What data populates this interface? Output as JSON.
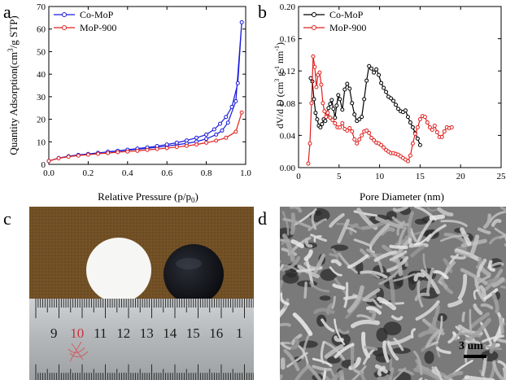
{
  "panels": {
    "a": "a",
    "b": "b",
    "c": "c",
    "d": "d"
  },
  "chart_data": [
    {
      "type": "line",
      "xlabel": "Relative Pressure (p/p",
      "xlabel_sub": "0",
      "xlabel_end": ")",
      "ylabel": "Quantity Adsorption(cm",
      "ylabel_sup": "3",
      "ylabel_end": "/g STP)",
      "xlim": [
        0.0,
        1.0
      ],
      "ylim": [
        0,
        70
      ],
      "xticks": [
        "0.0",
        "0.2",
        "0.4",
        "0.6",
        "0.8",
        "1.0"
      ],
      "yticks": [
        "0",
        "10",
        "20",
        "30",
        "40",
        "50",
        "60",
        "70"
      ],
      "xtick_values": [
        0.0,
        0.2,
        0.4,
        0.6,
        0.8,
        1.0
      ],
      "ytick_values": [
        0,
        10,
        20,
        30,
        40,
        50,
        60,
        70
      ],
      "legend_position": "top-left",
      "series": [
        {
          "name": "Co-MoP",
          "color": "#1a1adb",
          "x": [
            0.0,
            0.05,
            0.1,
            0.15,
            0.2,
            0.25,
            0.3,
            0.35,
            0.4,
            0.45,
            0.5,
            0.55,
            0.6,
            0.65,
            0.7,
            0.75,
            0.8,
            0.85,
            0.88,
            0.91,
            0.95,
            0.98,
            0.96,
            0.93,
            0.9,
            0.87,
            0.84,
            0.8,
            0.75,
            0.7,
            0.65,
            0.6,
            0.55,
            0.5,
            0.45,
            0.4,
            0.35,
            0.3
          ],
          "y": [
            1.5,
            2.8,
            3.6,
            4.2,
            4.6,
            5.1,
            5.5,
            5.9,
            6.3,
            6.7,
            7.1,
            7.6,
            8.1,
            8.7,
            9.3,
            10.1,
            11.3,
            13.2,
            15.0,
            18.5,
            28.0,
            63.0,
            36.0,
            25.5,
            21.0,
            18.0,
            15.5,
            13.2,
            11.8,
            10.6,
            9.6,
            8.8,
            8.1,
            7.5,
            7.0,
            6.5,
            6.0,
            5.6
          ]
        },
        {
          "name": "MoP-900",
          "color": "#e0201e",
          "x": [
            0.0,
            0.05,
            0.1,
            0.15,
            0.2,
            0.25,
            0.3,
            0.35,
            0.4,
            0.45,
            0.5,
            0.55,
            0.6,
            0.65,
            0.7,
            0.75,
            0.8,
            0.85,
            0.9,
            0.95,
            0.98
          ],
          "y": [
            1.5,
            2.7,
            3.4,
            3.9,
            4.3,
            4.7,
            5.0,
            5.4,
            5.7,
            6.0,
            6.4,
            6.8,
            7.2,
            7.7,
            8.2,
            8.8,
            9.6,
            10.5,
            11.8,
            14.5,
            23.0
          ]
        }
      ]
    },
    {
      "type": "line",
      "xlabel": "Pore Diameter (nm)",
      "ylabel": "dV/d D (cm",
      "ylabel_sup": "3",
      "ylabel_mid": " g",
      "ylabel_sup2": "-1",
      "ylabel_mid2": " nm",
      "ylabel_sup3": "-1",
      "ylabel_end": ")",
      "xlim": [
        0,
        25
      ],
      "ylim": [
        0.0,
        0.2
      ],
      "xticks": [
        "0",
        "5",
        "10",
        "15",
        "20",
        "25"
      ],
      "yticks": [
        "0.00",
        "0.04",
        "0.08",
        "0.12",
        "0.16",
        "0.20"
      ],
      "xtick_values": [
        0,
        5,
        10,
        15,
        20,
        25
      ],
      "ytick_values": [
        0.0,
        0.04,
        0.08,
        0.12,
        0.16,
        0.2
      ],
      "legend_position": "top-left",
      "series": [
        {
          "name": "Co-MoP",
          "color": "#000000",
          "x": [
            1.5,
            1.7,
            1.9,
            2.1,
            2.3,
            2.5,
            2.7,
            2.9,
            3.1,
            3.3,
            3.5,
            3.7,
            3.9,
            4.1,
            4.3,
            4.5,
            4.7,
            4.9,
            5.1,
            5.4,
            5.7,
            6.0,
            6.3,
            6.6,
            6.9,
            7.2,
            7.5,
            7.8,
            8.1,
            8.4,
            8.7,
            9.0,
            9.3,
            9.6,
            9.9,
            10.2,
            10.5,
            10.8,
            11.1,
            11.4,
            11.7,
            12.0,
            12.3,
            12.6,
            12.9,
            13.2,
            13.5,
            13.8,
            14.1,
            14.4,
            14.7,
            15.0
          ],
          "y": [
            0.111,
            0.107,
            0.085,
            0.068,
            0.06,
            0.052,
            0.05,
            0.054,
            0.06,
            0.058,
            0.066,
            0.074,
            0.079,
            0.084,
            0.073,
            0.062,
            0.077,
            0.09,
            0.085,
            0.072,
            0.097,
            0.104,
            0.098,
            0.08,
            0.066,
            0.058,
            0.06,
            0.063,
            0.085,
            0.108,
            0.126,
            0.123,
            0.118,
            0.122,
            0.115,
            0.105,
            0.099,
            0.094,
            0.088,
            0.086,
            0.083,
            0.078,
            0.073,
            0.07,
            0.069,
            0.071,
            0.063,
            0.056,
            0.05,
            0.043,
            0.036,
            0.028
          ]
        },
        {
          "name": "MoP-900",
          "color": "#e0201e",
          "x": [
            1.2,
            1.4,
            1.6,
            1.8,
            2.0,
            2.2,
            2.4,
            2.6,
            2.8,
            3.0,
            3.2,
            3.4,
            3.6,
            3.9,
            4.2,
            4.5,
            4.8,
            5.1,
            5.4,
            5.7,
            6.0,
            6.3,
            6.6,
            6.9,
            7.2,
            7.5,
            7.8,
            8.1,
            8.4,
            8.7,
            9.0,
            9.3,
            9.6,
            9.9,
            10.2,
            10.5,
            10.8,
            11.1,
            11.4,
            11.7,
            12.0,
            12.3,
            12.6,
            12.9,
            13.2,
            13.5,
            13.8,
            14.1,
            14.4,
            14.7,
            15.0,
            15.3,
            15.6,
            15.9,
            16.2,
            16.5,
            16.8,
            17.1,
            17.4,
            17.7,
            18.0,
            18.3,
            18.6,
            18.9
          ],
          "y": [
            0.005,
            0.03,
            0.08,
            0.138,
            0.125,
            0.1,
            0.115,
            0.118,
            0.103,
            0.08,
            0.07,
            0.063,
            0.068,
            0.062,
            0.059,
            0.055,
            0.05,
            0.05,
            0.055,
            0.048,
            0.046,
            0.049,
            0.045,
            0.035,
            0.03,
            0.035,
            0.04,
            0.045,
            0.046,
            0.043,
            0.037,
            0.034,
            0.031,
            0.03,
            0.028,
            0.025,
            0.022,
            0.02,
            0.018,
            0.018,
            0.017,
            0.016,
            0.014,
            0.012,
            0.01,
            0.008,
            0.015,
            0.03,
            0.042,
            0.05,
            0.06,
            0.064,
            0.063,
            0.056,
            0.05,
            0.047,
            0.052,
            0.044,
            0.038,
            0.038,
            0.045,
            0.05,
            0.049,
            0.05
          ]
        }
      ]
    }
  ],
  "photo_c": {
    "ruler_numbers": [
      "9",
      "10",
      "11",
      "12",
      "13",
      "14",
      "15",
      "16",
      "1"
    ]
  },
  "photo_d": {
    "scale_bar": "3 um"
  }
}
